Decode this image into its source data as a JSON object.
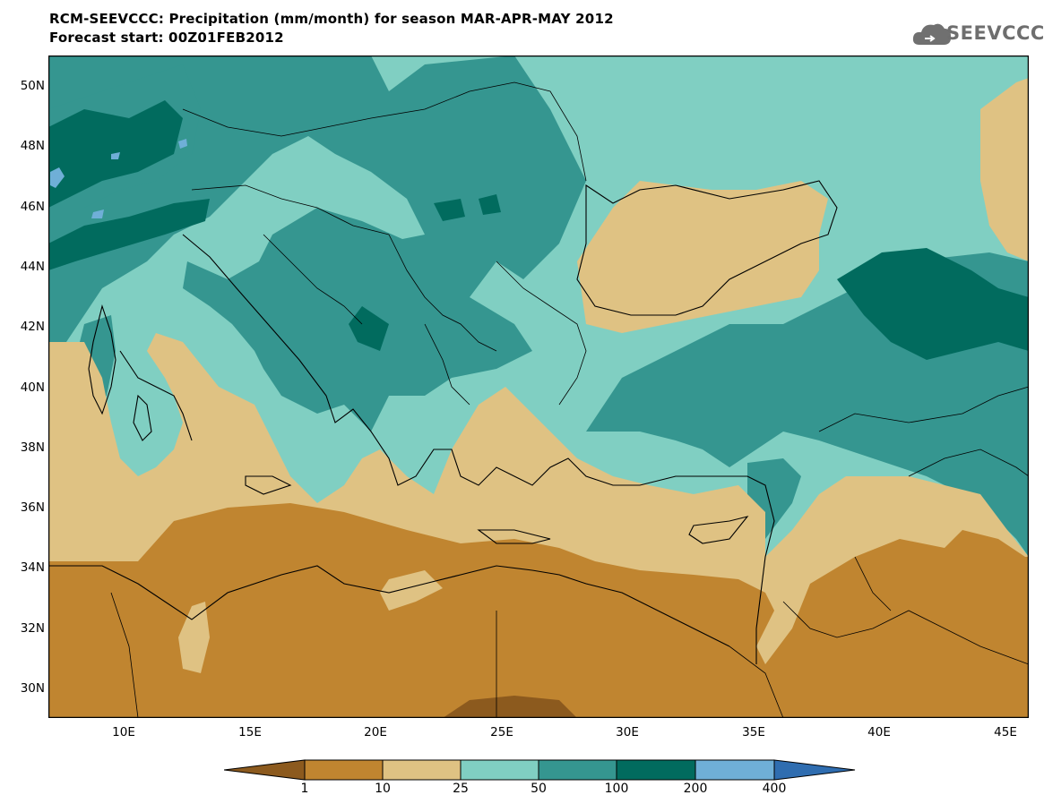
{
  "header": {
    "line1": "RCM-SEEVCCC: Precipitation (mm/month) for season MAR-APR-MAY 2012",
    "line2": "Forecast start: 00Z01FEB2012"
  },
  "logo": {
    "text": "SEEVCCC",
    "icon": "cloud-logo-icon"
  },
  "map": {
    "lat_labels": [
      "50N",
      "48N",
      "46N",
      "44N",
      "42N",
      "40N",
      "38N",
      "36N",
      "34N",
      "32N",
      "30N"
    ],
    "lon_labels": [
      "10E",
      "15E",
      "20E",
      "25E",
      "30E",
      "35E",
      "40E",
      "45E"
    ],
    "lat_range": [
      29,
      51
    ],
    "lon_range": [
      7,
      46
    ]
  },
  "colorbar": {
    "labels": [
      "1",
      "10",
      "25",
      "50",
      "100",
      "200",
      "400"
    ],
    "colors": [
      "#8c5a1e",
      "#c08530",
      "#dfc283",
      "#80cfc2",
      "#359690",
      "#016b5e",
      "#6fafd7",
      "#2f6db0"
    ]
  }
}
